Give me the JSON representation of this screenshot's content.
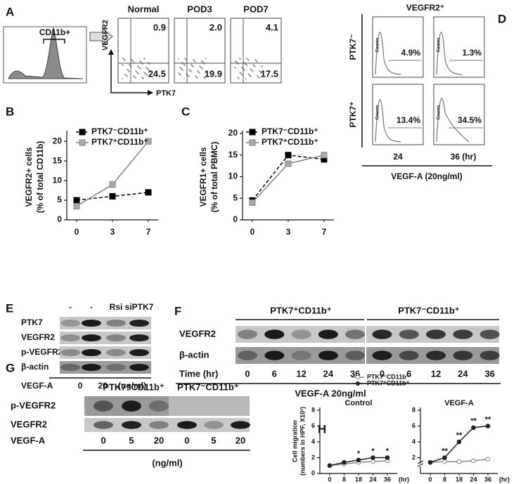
{
  "A": {
    "label": "A",
    "gate": "CD11b+",
    "y_marker": "VEGFR2",
    "x_marker": "PTK7",
    "plots": [
      {
        "title": "Normal",
        "upper": "0.9",
        "lower": "24.5"
      },
      {
        "title": "POD3",
        "upper": "2.0",
        "lower": "19.9"
      },
      {
        "title": "POD7",
        "upper": "4.1",
        "lower": "17.5"
      }
    ]
  },
  "B": {
    "label": "B",
    "chart_data": {
      "type": "line",
      "y_label": [
        "VEGFR2+ cells",
        "(% of total CD11b)"
      ],
      "categories": [
        "0",
        "3",
        "7"
      ],
      "ylim": [
        0,
        22
      ],
      "yticks": [
        0,
        5,
        10,
        15,
        20
      ],
      "series": [
        {
          "name": "PTK7⁻CD11b⁺",
          "color": "#000000",
          "dash": true,
          "marker": "square",
          "values": [
            5,
            6,
            7
          ]
        },
        {
          "name": "PTK7⁺CD11b⁺",
          "color": "#808080",
          "marker": "square",
          "values": [
            3.5,
            9,
            20
          ]
        }
      ]
    }
  },
  "C": {
    "label": "C",
    "chart_data": {
      "type": "line",
      "y_label": [
        "VEGFR1+ cells",
        "(% of total PBMC)"
      ],
      "categories": [
        "0",
        "3",
        "7"
      ],
      "ylim": [
        0,
        20
      ],
      "yticks": [
        0,
        5,
        10,
        15,
        20
      ],
      "series": [
        {
          "name": "PTK7⁻CD11b⁺",
          "color": "#000000",
          "dash": true,
          "marker": "square",
          "values": [
            4.5,
            15,
            14
          ]
        },
        {
          "name": "PTK7⁺CD11b⁺",
          "color": "#808080",
          "marker": "square",
          "values": [
            4,
            13,
            15
          ]
        }
      ]
    }
  },
  "D": {
    "label": "D",
    "title": "VEGFR2⁺",
    "rows": [
      "PTK7⁻",
      "PTK7⁺"
    ],
    "y_axis": "Counts",
    "percents": [
      [
        "4.9%",
        "1.3%"
      ],
      [
        "13.4%",
        "34.5%"
      ]
    ],
    "columns": [
      "24",
      "36 (hr)"
    ],
    "treatment": "VEGF-A (20ng/ml)"
  },
  "E": {
    "label": "E",
    "lanes": [
      "-",
      "-",
      "Rsi",
      "siPTK7"
    ],
    "rows": [
      "PTK7",
      "VEGFR2",
      "p-VEGFR2",
      "β-actin"
    ],
    "treatment": "VEGF-A",
    "doses": [
      0,
      20
    ],
    "unit": "(ng/ml)"
  },
  "F": {
    "label": "F",
    "groups": [
      "PTK7⁺CD11b⁺",
      "PTK7⁻CD11b⁺"
    ],
    "rows": [
      "VEGFR2",
      "β-actin"
    ],
    "time_label": "Time (hr)",
    "times": [
      0,
      6,
      12,
      24,
      36,
      0,
      6,
      12,
      24,
      36
    ],
    "treatment": "VEGF-A  20ng/ml"
  },
  "G": {
    "label": "G",
    "groups": [
      "PTK7⁺CD11b⁺",
      "PTK7⁻CD11b⁺"
    ],
    "rows": [
      "p-VEGFR2",
      "VEGFR2"
    ],
    "treatment": "VEGF-A",
    "doses": [
      0,
      5,
      20,
      0,
      5,
      20
    ],
    "unit": "(ng/ml)"
  },
  "H": {
    "label": "H",
    "y_label": [
      "Cell migration",
      "(numbers in HPF, X10²)"
    ],
    "charts": [
      {
        "type": "line",
        "title": "Control",
        "categories": [
          "0",
          "8",
          "18",
          "24",
          "36"
        ],
        "x_unit": "(hr)",
        "ylim": [
          0,
          8
        ],
        "yticks": [
          0,
          2,
          4,
          6,
          8
        ],
        "series": [
          {
            "name": "PTK7⁻CD11b⁺",
            "color": "#888888",
            "open": true,
            "marker": "circle",
            "values": [
              1,
              1.2,
              1.4,
              1.5,
              1.6
            ]
          },
          {
            "name": "PTK7⁺CD11b⁺",
            "color": "#222222",
            "marker": "circle",
            "values": [
              1,
              1.4,
              1.7,
              2,
              2
            ]
          }
        ],
        "significance": [
          null,
          null,
          "*",
          "*",
          "*"
        ]
      },
      {
        "type": "line",
        "title": "VEGF-A",
        "categories": [
          "0",
          "8",
          "18",
          "24",
          "36"
        ],
        "x_unit": "(hr)",
        "ylim": [
          0,
          8
        ],
        "yticks": [
          2,
          4,
          6,
          8
        ],
        "axis_break": true,
        "series": [
          {
            "color": "#888888",
            "open": true,
            "marker": "circle",
            "values": [
              1.4,
              1.5,
              1.5,
              1.6,
              1.8
            ]
          },
          {
            "color": "#222222",
            "marker": "circle",
            "values": [
              1.4,
              2,
              4,
              5.8,
              6
            ]
          }
        ],
        "significance": [
          null,
          "**",
          "**",
          "**",
          "**"
        ]
      }
    ]
  }
}
